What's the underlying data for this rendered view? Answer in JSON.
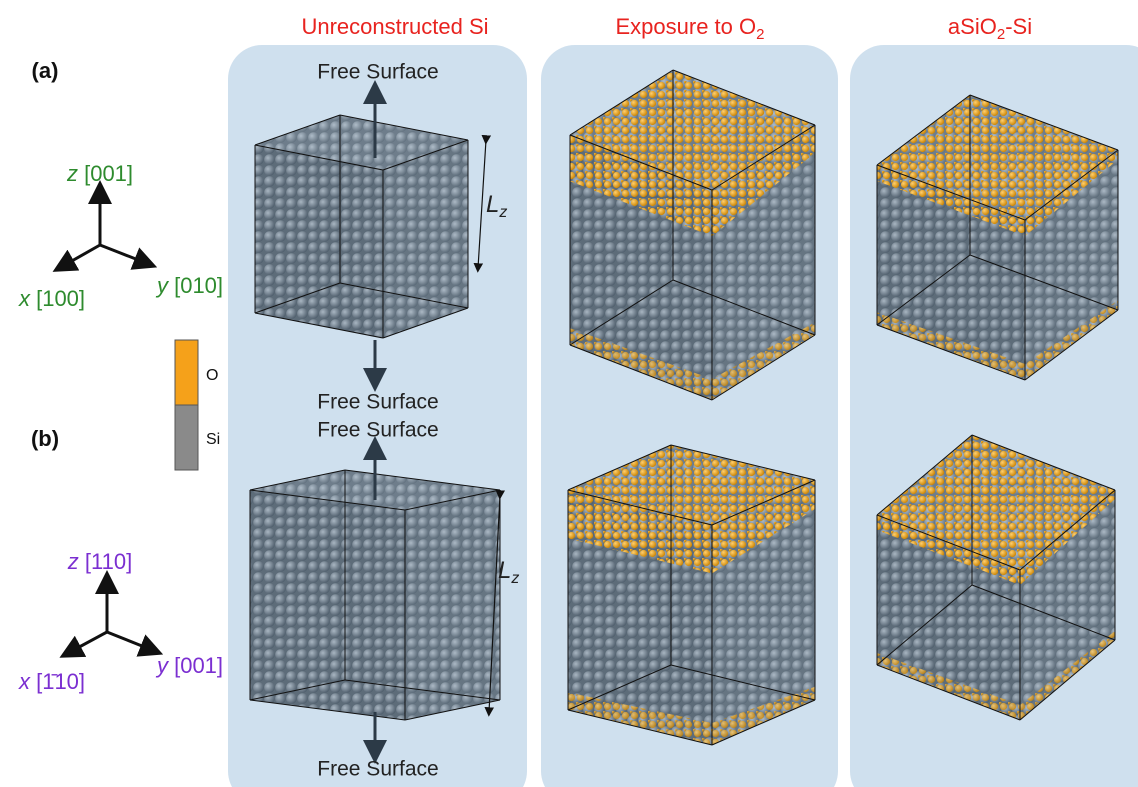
{
  "column_titles": [
    {
      "text": "Unreconstructed Si"
    },
    {
      "text": "Exposure to O",
      "sub": "2"
    },
    {
      "text": "aSiO",
      "sub": "2",
      "tail": "-Si"
    }
  ],
  "panels": [
    {
      "label": "(a)",
      "z": {
        "axis": "z",
        "dir": "[001]"
      },
      "x": {
        "axis": "x",
        "dir": "[100]"
      },
      "y": {
        "axis": "y",
        "dir": "[010]"
      }
    },
    {
      "label": "(b)",
      "z": {
        "axis": "z",
        "dir": "[110]"
      },
      "x": {
        "axis": "x",
        "dir": "[1̄10]"
      },
      "y": {
        "axis": "y",
        "dir": "[001]"
      }
    }
  ],
  "legend": [
    "O",
    "Si"
  ],
  "free_surface_labels": [
    "Free Surface",
    "Free Surface",
    "Free Surface",
    "Free Surface"
  ],
  "length_labels": [
    {
      "text": "L",
      "sub": "z"
    },
    {
      "text": "L",
      "sub": "z"
    }
  ]
}
